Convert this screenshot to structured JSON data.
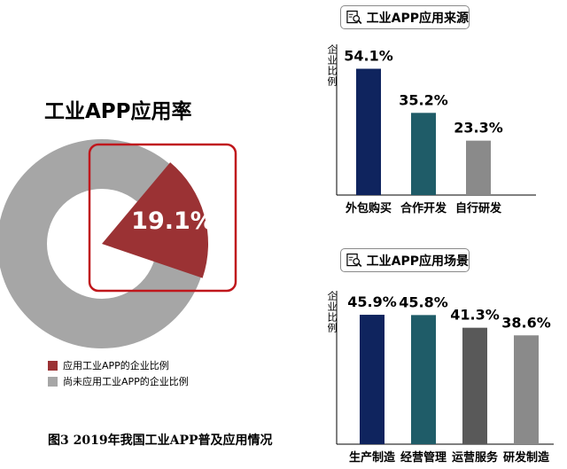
{
  "rate_chart": {
    "title": "工业APP应用率",
    "value_label": "19.1%",
    "legend": [
      {
        "label": "应用工业APP的企业比例",
        "color": "#9b3234"
      },
      {
        "label": "尚未应用工业APP的企业比例",
        "color": "#a6a6a6"
      }
    ]
  },
  "caption": "图3  2019年我国工业APP普及应用情况",
  "source_panel": {
    "title": "工业APP应用来源",
    "ylabel": "企业比例",
    "icon": "magnifier-document-icon"
  },
  "scene_panel": {
    "title": "工业APP应用场景",
    "ylabel": "企业比例",
    "icon": "magnifier-document-icon"
  },
  "chart_data": [
    {
      "type": "pie",
      "title": "工业APP应用率",
      "categories": [
        "应用工业APP的企业比例",
        "尚未应用工业APP的企业比例"
      ],
      "values": [
        19.1,
        80.9
      ],
      "colors": [
        "#9b3234",
        "#a6a6a6"
      ],
      "data_labels": [
        "19.1%",
        ""
      ],
      "legend_position": "bottom-left"
    },
    {
      "type": "bar",
      "title": "工业APP应用来源",
      "ylabel": "企业比例",
      "categories": [
        "外包购买",
        "合作开发",
        "自行研发"
      ],
      "values": [
        54.1,
        35.2,
        23.3
      ],
      "data_labels": [
        "54.1%",
        "35.2%",
        "23.3%"
      ],
      "colors": [
        "#0f245e",
        "#1f5c68",
        "#8a8a8a"
      ],
      "ylim": [
        0,
        60
      ]
    },
    {
      "type": "bar",
      "title": "工业APP应用场景",
      "ylabel": "企业比例",
      "categories": [
        "生产制造",
        "经营管理",
        "运营服务",
        "研发制造"
      ],
      "values": [
        45.9,
        45.8,
        41.3,
        38.6
      ],
      "data_labels": [
        "45.9%",
        "45.8%",
        "41.3%",
        "38.6%"
      ],
      "colors": [
        "#0f245e",
        "#1f5c68",
        "#595959",
        "#8a8a8a"
      ],
      "ylim": [
        0,
        50
      ]
    }
  ]
}
